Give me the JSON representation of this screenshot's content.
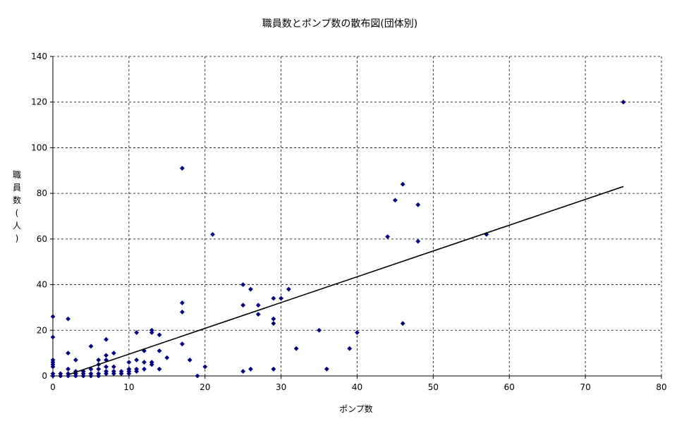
{
  "chart_data": {
    "type": "scatter",
    "title": "職員数とポンプ数の散布図(団体別)",
    "xlabel": "ポンプ数",
    "ylabel_chars": [
      "職",
      "員",
      "数",
      "(",
      "人",
      ")"
    ],
    "xlim": [
      0,
      80
    ],
    "ylim": [
      0,
      140
    ],
    "xticks": [
      0,
      10,
      20,
      30,
      40,
      50,
      60,
      70,
      80
    ],
    "yticks": [
      0,
      20,
      40,
      60,
      80,
      100,
      120,
      140
    ],
    "grid": true,
    "marker_color": "#000080",
    "trendline": {
      "x": [
        2,
        75
      ],
      "y": [
        0.5,
        83
      ]
    },
    "points": [
      [
        0,
        26
      ],
      [
        0,
        17
      ],
      [
        0,
        7
      ],
      [
        0,
        6
      ],
      [
        0,
        5
      ],
      [
        0,
        4
      ],
      [
        0,
        1
      ],
      [
        0,
        0
      ],
      [
        1,
        1
      ],
      [
        1,
        0
      ],
      [
        2,
        25
      ],
      [
        2,
        10
      ],
      [
        2,
        3
      ],
      [
        2,
        1
      ],
      [
        2,
        0
      ],
      [
        3,
        7
      ],
      [
        3,
        2
      ],
      [
        3,
        1
      ],
      [
        3,
        0
      ],
      [
        4,
        2
      ],
      [
        4,
        1
      ],
      [
        4,
        0
      ],
      [
        5,
        13
      ],
      [
        5,
        3
      ],
      [
        5,
        1
      ],
      [
        5,
        0
      ],
      [
        6,
        7
      ],
      [
        6,
        5
      ],
      [
        6,
        3
      ],
      [
        6,
        1
      ],
      [
        6,
        0
      ],
      [
        7,
        16
      ],
      [
        7,
        9
      ],
      [
        7,
        7
      ],
      [
        7,
        4
      ],
      [
        7,
        2
      ],
      [
        7,
        1
      ],
      [
        8,
        10
      ],
      [
        8,
        4
      ],
      [
        8,
        2
      ],
      [
        8,
        1
      ],
      [
        9,
        2
      ],
      [
        9,
        1
      ],
      [
        10,
        6
      ],
      [
        10,
        3
      ],
      [
        10,
        2
      ],
      [
        10,
        1
      ],
      [
        11,
        19
      ],
      [
        11,
        7
      ],
      [
        11,
        3
      ],
      [
        11,
        2
      ],
      [
        12,
        11
      ],
      [
        12,
        6
      ],
      [
        12,
        3
      ],
      [
        13,
        20
      ],
      [
        13,
        19
      ],
      [
        13,
        6
      ],
      [
        13,
        5
      ],
      [
        14,
        18
      ],
      [
        14,
        11
      ],
      [
        14,
        3
      ],
      [
        15,
        8
      ],
      [
        17,
        91
      ],
      [
        17,
        32
      ],
      [
        17,
        28
      ],
      [
        17,
        14
      ],
      [
        18,
        7
      ],
      [
        19,
        0
      ],
      [
        20,
        4
      ],
      [
        21,
        62
      ],
      [
        25,
        40
      ],
      [
        25,
        31
      ],
      [
        25,
        2
      ],
      [
        26,
        38
      ],
      [
        26,
        3
      ],
      [
        27,
        31
      ],
      [
        27,
        27
      ],
      [
        29,
        34
      ],
      [
        29,
        25
      ],
      [
        29,
        23
      ],
      [
        29,
        3
      ],
      [
        30,
        34
      ],
      [
        31,
        38
      ],
      [
        32,
        12
      ],
      [
        35,
        20
      ],
      [
        36,
        3
      ],
      [
        39,
        12
      ],
      [
        40,
        19
      ],
      [
        44,
        61
      ],
      [
        45,
        77
      ],
      [
        46,
        84
      ],
      [
        46,
        23
      ],
      [
        48,
        75
      ],
      [
        48,
        59
      ],
      [
        57,
        62
      ],
      [
        75,
        120
      ]
    ]
  }
}
